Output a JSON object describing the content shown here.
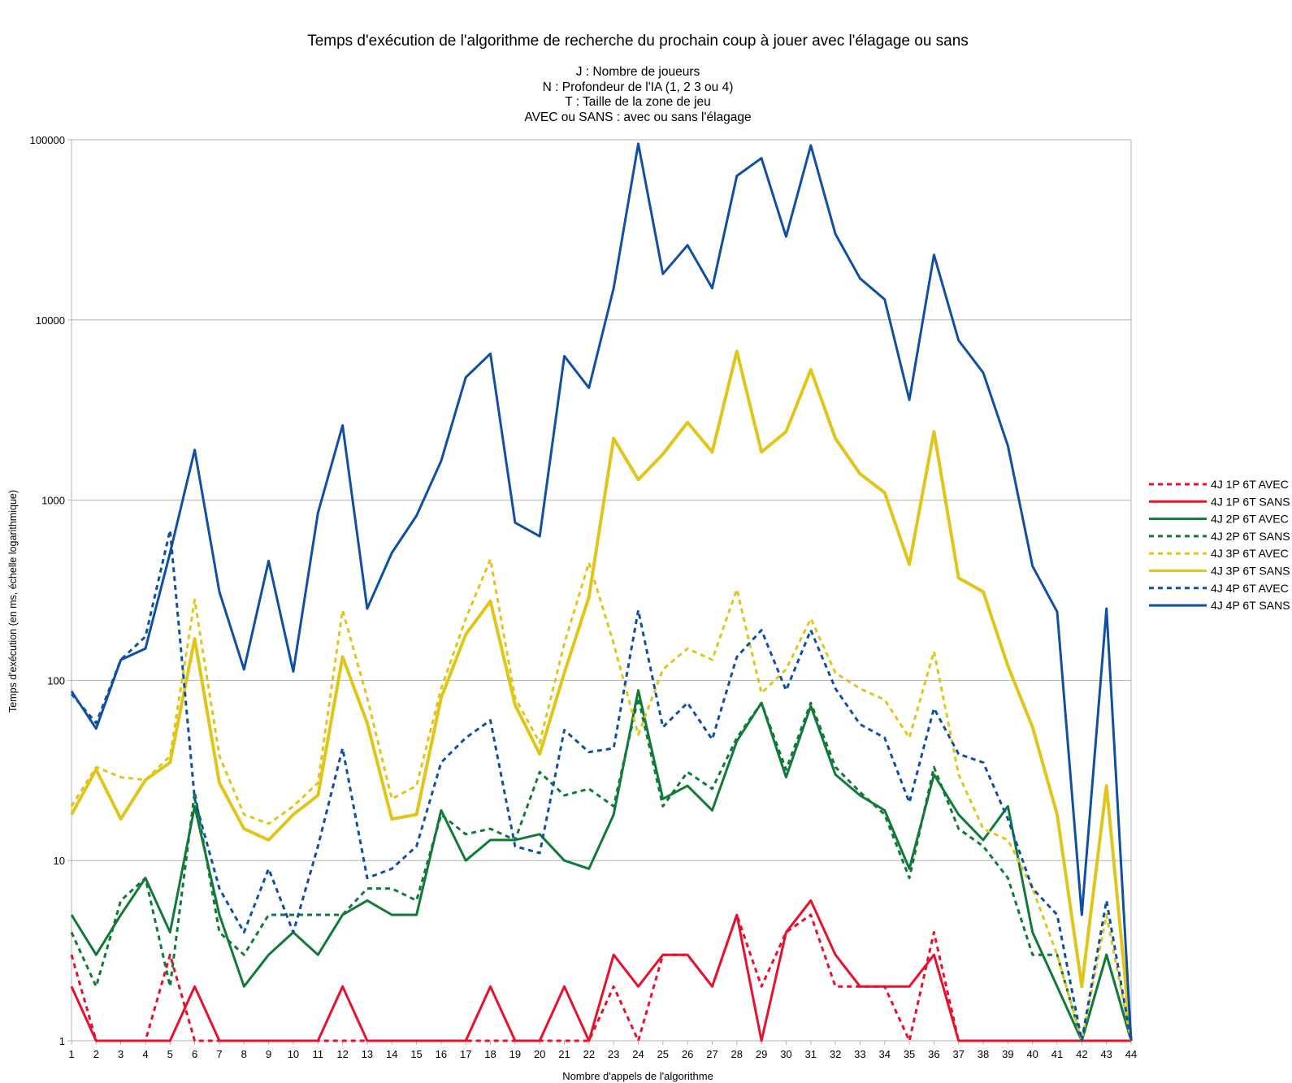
{
  "chart_data": {
    "type": "line",
    "title": "Temps d'exécution de l'algorithme de recherche du prochain coup à jouer avec l'élagage ou sans",
    "subtitle": "J : Nombre de joueurs\nN : Profondeur de l'IA (1, 2 3 ou 4)\nT : Taille de la zone de jeu\nAVEC ou SANS : avec ou sans l'élagage",
    "xlabel": "Nombre d'appels de l'algorithme",
    "ylabel": "Temps d'exécution (en ms, échelle logarithmique)",
    "yscale": "log",
    "ylim": [
      1,
      100000
    ],
    "yticks": [
      "1",
      "10",
      "100",
      "1000",
      "10000",
      "100000"
    ],
    "x": [
      1,
      2,
      3,
      4,
      5,
      6,
      7,
      8,
      9,
      10,
      11,
      12,
      13,
      14,
      15,
      16,
      17,
      18,
      19,
      20,
      21,
      22,
      23,
      24,
      25,
      26,
      27,
      28,
      29,
      30,
      31,
      32,
      33,
      34,
      35,
      36,
      37,
      38,
      39,
      40,
      41,
      42,
      43,
      44
    ],
    "grid": true,
    "legend_position": "right",
    "series": [
      {
        "name": "4J 1P 6T AVEC",
        "color": "#e8112d",
        "dash": "dotted",
        "values": [
          3,
          1,
          1,
          1,
          3,
          1,
          1,
          1,
          1,
          1,
          1,
          1,
          1,
          1,
          1,
          1,
          1,
          1,
          1,
          1,
          1,
          1,
          2,
          1,
          3,
          3,
          2,
          5,
          2,
          4,
          5,
          2,
          2,
          2,
          1,
          4,
          1,
          1,
          1,
          1,
          1,
          1,
          1,
          1
        ]
      },
      {
        "name": "4J 1P 6T SANS",
        "color": "#e8112d",
        "dash": "solid",
        "values": [
          2,
          1,
          1,
          1,
          1,
          2,
          1,
          1,
          1,
          1,
          1,
          2,
          1,
          1,
          1,
          1,
          1,
          2,
          1,
          1,
          2,
          1,
          3,
          2,
          3,
          3,
          2,
          5,
          1,
          4,
          6,
          3,
          2,
          2,
          2,
          3,
          1,
          1,
          1,
          1,
          1,
          1,
          1,
          1
        ]
      },
      {
        "name": "4J 2P 6T AVEC",
        "color": "#127a38",
        "dash": "solid",
        "values": [
          5,
          3,
          5,
          8,
          4,
          20,
          5,
          2,
          3,
          4,
          3,
          5,
          6,
          5,
          5,
          19,
          10,
          13,
          13,
          14,
          10,
          9,
          18,
          88,
          22,
          26,
          19,
          46,
          75,
          29,
          72,
          30,
          23,
          19,
          9,
          30,
          18,
          13,
          20,
          4,
          2,
          1,
          3,
          1
        ]
      },
      {
        "name": "4J 2P 6T SANS",
        "color": "#127a38",
        "dash": "dotted",
        "values": [
          4,
          2,
          6,
          8,
          2,
          24,
          4,
          3,
          5,
          5,
          5,
          5,
          7,
          7,
          6,
          18,
          14,
          15,
          13,
          31,
          23,
          25,
          20,
          80,
          20,
          31,
          25,
          48,
          75,
          32,
          75,
          33,
          24,
          18,
          8,
          33,
          15,
          12,
          8,
          3,
          3,
          1,
          3,
          1
        ]
      },
      {
        "name": "4J 3P 6T AVEC",
        "color": "#e0c61b",
        "dash": "dotted",
        "values": [
          20,
          33,
          29,
          28,
          38,
          280,
          38,
          18,
          16,
          20,
          27,
          245,
          80,
          22,
          26,
          90,
          220,
          470,
          80,
          45,
          160,
          450,
          160,
          50,
          115,
          150,
          130,
          320,
          85,
          115,
          220,
          110,
          90,
          78,
          48,
          145,
          30,
          15,
          13,
          7,
          3,
          1,
          5,
          1
        ]
      },
      {
        "name": "4J 3P 6T SANS",
        "color": "#e0c61b",
        "dash": "solid",
        "values": [
          18,
          32,
          17,
          28,
          35,
          170,
          27,
          15,
          13,
          18,
          23,
          135,
          58,
          17,
          18,
          80,
          180,
          275,
          73,
          39,
          110,
          290,
          2200,
          1300,
          1800,
          2700,
          1850,
          6700,
          1850,
          2400,
          5300,
          2200,
          1400,
          1100,
          440,
          2400,
          370,
          310,
          120,
          55,
          18,
          2,
          26,
          1
        ]
      },
      {
        "name": "4J 4P 6T AVEC",
        "color": "#0f50a3",
        "dash": "dotted",
        "values": [
          84,
          58,
          130,
          175,
          680,
          22,
          7,
          4,
          9,
          4,
          12,
          42,
          8,
          9,
          12,
          35,
          48,
          60,
          12,
          11,
          53,
          40,
          42,
          245,
          55,
          75,
          47,
          135,
          190,
          88,
          190,
          90,
          57,
          48,
          21,
          70,
          39,
          35,
          17,
          7,
          5,
          1,
          6,
          1
        ]
      },
      {
        "name": "4J 4P 6T SANS",
        "color": "#0f50a3",
        "dash": "solid",
        "values": [
          87,
          54,
          130,
          150,
          510,
          1900,
          310,
          115,
          460,
          112,
          850,
          2600,
          250,
          510,
          820,
          1650,
          4800,
          6500,
          750,
          630,
          6300,
          4200,
          15000,
          95000,
          18000,
          26000,
          15000,
          63000,
          79000,
          29000,
          93000,
          30000,
          17000,
          13000,
          3600,
          23000,
          7700,
          5100,
          2000,
          430,
          240,
          5,
          250,
          1
        ]
      }
    ]
  }
}
